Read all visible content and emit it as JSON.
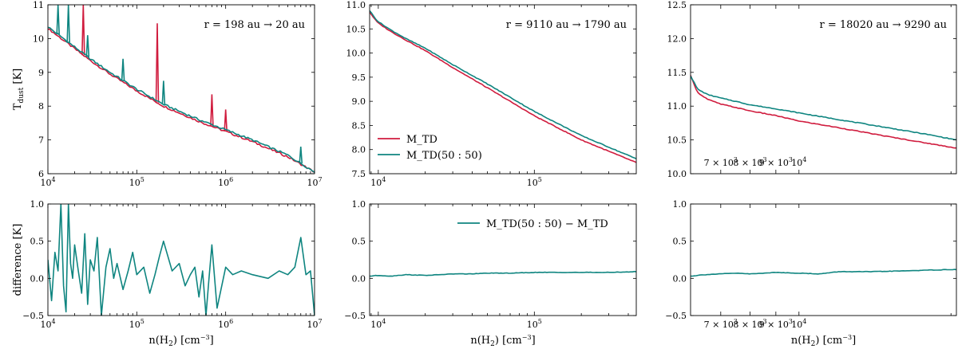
{
  "colors": {
    "m_td": "#d01c3e",
    "m_td_5050": "#0f8580",
    "axis": "#000000"
  },
  "chart_data": [
    {
      "type": "line",
      "panel": "top-left",
      "xscale": "log",
      "xlim": [
        10000,
        10000000
      ],
      "ylim": [
        6,
        11
      ],
      "ylabel": "T_dust [K]",
      "xlabel": "",
      "annotation": "r = 198 au → 20 au",
      "yticks": [
        "6",
        "7",
        "8",
        "9",
        "10",
        "11"
      ],
      "xticks": [
        "10^4",
        "10^5",
        "10^6",
        "10^7"
      ],
      "series": [
        {
          "name": "M_TD",
          "color_key": "m_td",
          "x": [
            10000,
            15000,
            20000,
            30000,
            50000,
            100000,
            200000,
            500000,
            1000000,
            2000000,
            5000000,
            10000000
          ],
          "y": [
            10.3,
            9.95,
            9.7,
            9.35,
            8.95,
            8.45,
            8.0,
            7.55,
            7.25,
            6.95,
            6.5,
            6.05
          ],
          "spikes": [
            [
              25000,
              11.0
            ],
            [
              170000,
              10.45
            ],
            [
              700000,
              8.35
            ],
            [
              1000000,
              7.9
            ]
          ]
        },
        {
          "name": "M_TD(50:50)",
          "color_key": "m_td_5050",
          "x": [
            10000,
            15000,
            20000,
            30000,
            50000,
            100000,
            200000,
            500000,
            1000000,
            2000000,
            5000000,
            10000000
          ],
          "y": [
            10.35,
            10.0,
            9.75,
            9.4,
            9.0,
            8.5,
            8.05,
            7.6,
            7.3,
            7.0,
            6.55,
            6.05
          ],
          "spikes": [
            [
              13000,
              11.0
            ],
            [
              17000,
              11.0
            ],
            [
              28000,
              10.1
            ],
            [
              70000,
              9.4
            ],
            [
              200000,
              8.75
            ],
            [
              7000000,
              6.8
            ]
          ]
        }
      ]
    },
    {
      "type": "line",
      "panel": "top-middle",
      "xscale": "log",
      "xlim": [
        8800,
        450000
      ],
      "ylim": [
        7.5,
        11.0
      ],
      "annotation": "r = 9110 au → 1790 au",
      "yticks": [
        "7.5",
        "8.0",
        "8.5",
        "9.0",
        "9.5",
        "10.0",
        "10.5",
        "11.0"
      ],
      "xticks": [
        "10^4",
        "10^5"
      ],
      "legend": {
        "placement": "center-left",
        "entries": [
          "M_TD",
          "M_TD(50 : 50)"
        ]
      },
      "series": [
        {
          "name": "M_TD",
          "color_key": "m_td",
          "x": [
            8800,
            9500,
            10000,
            12000,
            15000,
            20000,
            30000,
            50000,
            100000,
            200000,
            450000
          ],
          "y": [
            10.85,
            10.7,
            10.62,
            10.45,
            10.27,
            10.05,
            9.7,
            9.28,
            8.7,
            8.2,
            7.73
          ]
        },
        {
          "name": "M_TD(50:50)",
          "color_key": "m_td_5050",
          "x": [
            8800,
            9500,
            10000,
            12000,
            15000,
            20000,
            30000,
            50000,
            100000,
            200000,
            450000
          ],
          "y": [
            10.88,
            10.73,
            10.65,
            10.48,
            10.3,
            10.1,
            9.76,
            9.36,
            8.79,
            8.29,
            7.81
          ]
        }
      ]
    },
    {
      "type": "line",
      "panel": "top-right",
      "xscale": "log",
      "xlim": [
        6100,
        20500
      ],
      "ylim": [
        10.0,
        12.5
      ],
      "annotation": "r = 18020 au → 9290 au",
      "yticks": [
        "10.0",
        "10.5",
        "11.0",
        "11.5",
        "12.0",
        "12.5"
      ],
      "xticks": [
        {
          "value": 7000,
          "label": "7 × 10^3"
        },
        {
          "value": 8000,
          "label": "8 × 10^3"
        },
        {
          "value": 9000,
          "label": "9 × 10^3"
        },
        {
          "value": 10000,
          "label": "10^4"
        }
      ],
      "series": [
        {
          "name": "M_TD",
          "color_key": "m_td",
          "x": [
            6100,
            6300,
            6600,
            7000,
            7500,
            8000,
            9000,
            10000,
            12000,
            15000,
            18000,
            20500
          ],
          "y": [
            11.45,
            11.2,
            11.1,
            11.03,
            10.98,
            10.93,
            10.86,
            10.78,
            10.68,
            10.55,
            10.45,
            10.38
          ]
        },
        {
          "name": "M_TD(50:50)",
          "color_key": "m_td_5050",
          "x": [
            6100,
            6300,
            6600,
            7000,
            7500,
            8000,
            9000,
            10000,
            12000,
            15000,
            18000,
            20500
          ],
          "y": [
            11.45,
            11.25,
            11.17,
            11.12,
            11.07,
            11.02,
            10.96,
            10.9,
            10.8,
            10.68,
            10.58,
            10.5
          ]
        }
      ]
    },
    {
      "type": "line",
      "panel": "bottom-left",
      "xscale": "log",
      "xlim": [
        10000,
        10000000
      ],
      "ylim": [
        -0.5,
        1.0
      ],
      "ylabel": "difference [K]",
      "xlabel": "n(H2) [cm^-3]",
      "yticks": [
        "−0.5",
        "0.0",
        "0.5",
        "1.0"
      ],
      "xticks": [
        "10^4",
        "10^5",
        "10^6",
        "10^7"
      ],
      "series": [
        {
          "name": "M_TD(50:50) − M_TD",
          "color_key": "m_td_5050",
          "x": [
            10000,
            11000,
            12000,
            13000,
            14000,
            15000,
            16000,
            17000,
            18000,
            19000,
            20000,
            22000,
            24000,
            26000,
            28000,
            30000,
            33000,
            36000,
            40000,
            45000,
            50000,
            55000,
            60000,
            70000,
            80000,
            90000,
            100000,
            120000,
            140000,
            160000,
            180000,
            200000,
            250000,
            300000,
            350000,
            400000,
            450000,
            500000,
            550000,
            600000,
            650000,
            700000,
            800000,
            1000000,
            1200000,
            1500000,
            2000000,
            3000000,
            4000000,
            5000000,
            6000000,
            7000000,
            8000000,
            9000000,
            10000000
          ],
          "y": [
            0.25,
            -0.3,
            0.35,
            0.1,
            1.0,
            -0.1,
            -0.45,
            1.0,
            0.2,
            0.0,
            0.45,
            0.1,
            -0.2,
            0.6,
            -0.35,
            0.25,
            0.1,
            0.55,
            -0.5,
            0.15,
            0.4,
            0.0,
            0.2,
            -0.15,
            0.1,
            0.35,
            0.05,
            0.15,
            -0.2,
            0.05,
            0.3,
            0.5,
            0.1,
            0.2,
            -0.1,
            0.05,
            0.15,
            -0.25,
            0.1,
            -0.5,
            0.0,
            0.45,
            -0.4,
            0.15,
            0.05,
            0.1,
            0.05,
            0.0,
            0.1,
            0.05,
            0.15,
            0.55,
            0.05,
            0.1,
            -0.5
          ]
        }
      ]
    },
    {
      "type": "line",
      "panel": "bottom-middle",
      "xscale": "log",
      "xlim": [
        8800,
        450000
      ],
      "ylim": [
        -0.5,
        1.0
      ],
      "xlabel": "n(H2) [cm^-3]",
      "yticks": [
        "−0.5",
        "0.0",
        "0.5",
        "1.0"
      ],
      "xticks": [
        "10^4",
        "10^5"
      ],
      "legend": {
        "placement": "top-right",
        "entries": [
          "M_TD(50 : 50) − M_TD"
        ]
      },
      "series": [
        {
          "name": "M_TD(50:50) − M_TD",
          "color_key": "m_td_5050",
          "x": [
            8800,
            10000,
            12000,
            15000,
            20000,
            25000,
            30000,
            40000,
            50000,
            70000,
            100000,
            150000,
            200000,
            300000,
            450000
          ],
          "y": [
            0.03,
            0.04,
            0.03,
            0.05,
            0.04,
            0.05,
            0.06,
            0.06,
            0.07,
            0.07,
            0.08,
            0.08,
            0.08,
            0.08,
            0.09
          ]
        }
      ]
    },
    {
      "type": "line",
      "panel": "bottom-right",
      "xscale": "log",
      "xlim": [
        6100,
        20500
      ],
      "ylim": [
        -0.5,
        1.0
      ],
      "xlabel": "n(H2) [cm^-3]",
      "yticks": [
        "−0.5",
        "0.0",
        "0.5",
        "1.0"
      ],
      "xticks": [
        {
          "value": 7000,
          "label": "7 × 10^3"
        },
        {
          "value": 8000,
          "label": "8 × 10^3"
        },
        {
          "value": 9000,
          "label": "9 × 10^3"
        },
        {
          "value": 10000,
          "label": "10^4"
        }
      ],
      "series": [
        {
          "name": "M_TD(50:50) − M_TD",
          "color_key": "m_td_5050",
          "x": [
            6100,
            6500,
            7000,
            7500,
            8000,
            9000,
            10000,
            11000,
            12000,
            14000,
            16000,
            18000,
            20500
          ],
          "y": [
            0.03,
            0.05,
            0.06,
            0.07,
            0.06,
            0.08,
            0.07,
            0.06,
            0.09,
            0.09,
            0.1,
            0.11,
            0.12
          ]
        }
      ]
    }
  ]
}
